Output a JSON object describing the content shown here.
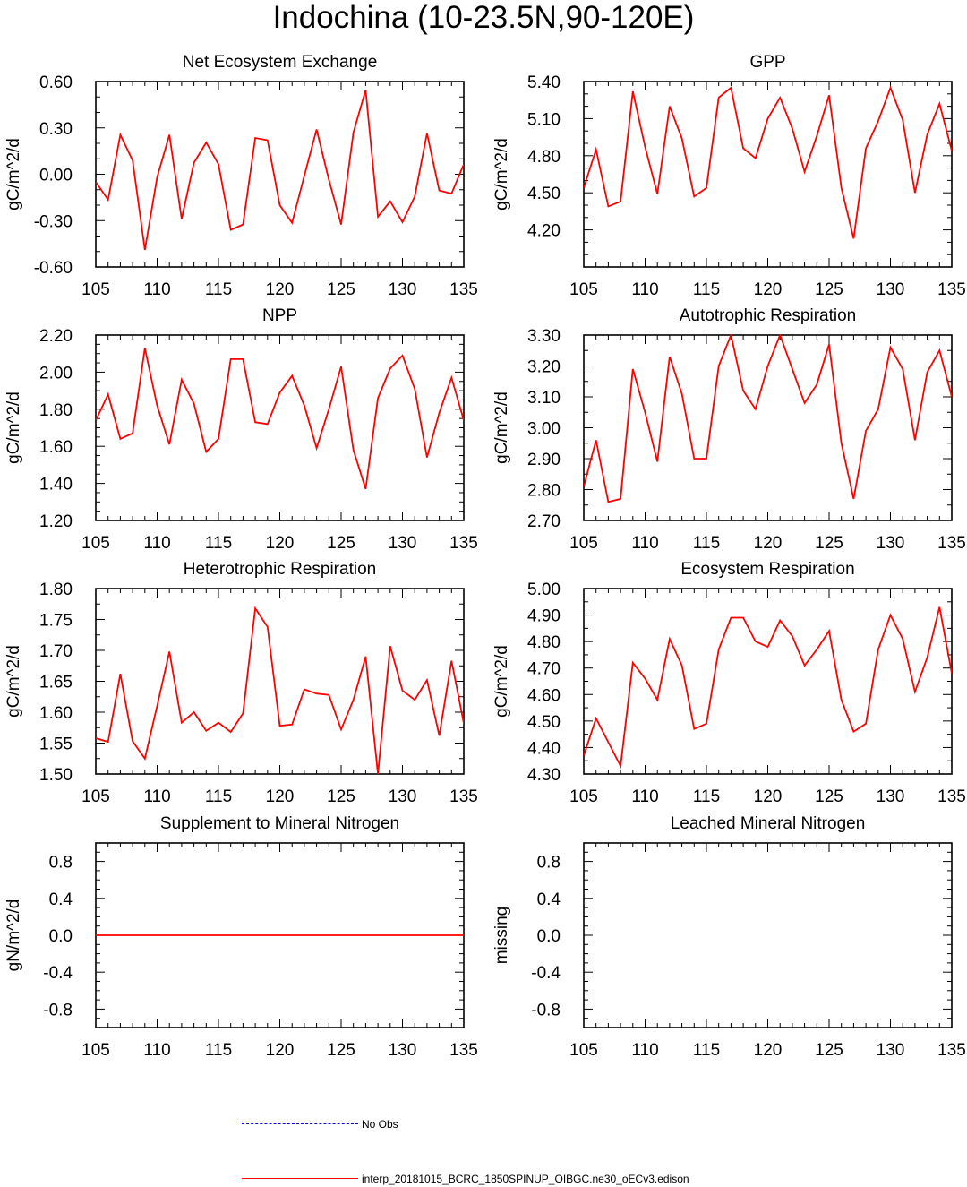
{
  "title": "Indochina (10-23.5N,90-120E)",
  "colors": {
    "model": "#ff0000",
    "obs": "#0000ff",
    "axis": "#000000"
  },
  "legend": {
    "obs_label": "No Obs",
    "model_label": "interp_20181015_BCRC_1850SPINUP_OIBGC.ne30_oECv3.edison"
  },
  "chart_data": [
    {
      "type": "line",
      "title": "Net Ecosystem Exchange",
      "ylabel": "gC/m^2/d",
      "xlim": [
        105,
        135
      ],
      "ylim": [
        -0.6,
        0.6
      ],
      "xticks": [
        105,
        110,
        115,
        120,
        125,
        130,
        135
      ],
      "yticks": [
        "-0.60",
        "-0.30",
        "0.00",
        "0.30",
        "0.60"
      ],
      "yminor": [
        -0.5,
        -0.4,
        -0.2,
        -0.1,
        0.1,
        0.2,
        0.4,
        0.5
      ],
      "series": [
        {
          "x": [
            105,
            106,
            107,
            108,
            109,
            110,
            111,
            112,
            113,
            114,
            115,
            116,
            117,
            118,
            119,
            120,
            121,
            122,
            123,
            124,
            125,
            126,
            127,
            128,
            129,
            130,
            131,
            132,
            133,
            134,
            135
          ],
          "y": [
            -0.05,
            -0.165,
            0.255,
            0.09,
            -0.49,
            -0.02,
            0.255,
            -0.29,
            0.075,
            0.205,
            0.065,
            -0.36,
            -0.325,
            0.235,
            0.22,
            -0.2,
            -0.315,
            -0.01,
            0.29,
            -0.035,
            -0.325,
            0.27,
            0.545,
            -0.275,
            -0.175,
            -0.31,
            -0.145,
            0.265,
            -0.105,
            -0.125,
            0.065
          ]
        }
      ]
    },
    {
      "type": "line",
      "title": "GPP",
      "ylabel": "gC/m^2/d",
      "xlim": [
        105,
        135
      ],
      "ylim": [
        3.9,
        5.4
      ],
      "xticks": [
        105,
        110,
        115,
        120,
        125,
        130,
        135
      ],
      "yticks": [
        "4.20",
        "4.50",
        "4.80",
        "5.10",
        "5.40"
      ],
      "yminor": [
        4.0,
        4.1,
        4.3,
        4.4,
        4.6,
        4.7,
        4.9,
        5.0,
        5.2,
        5.3
      ],
      "series": [
        {
          "x": [
            105,
            106,
            107,
            108,
            109,
            110,
            111,
            112,
            113,
            114,
            115,
            116,
            117,
            118,
            119,
            120,
            121,
            122,
            123,
            124,
            125,
            126,
            127,
            128,
            129,
            130,
            131,
            132,
            133,
            134,
            135
          ],
          "y": [
            4.54,
            4.85,
            4.39,
            4.43,
            5.32,
            4.87,
            4.49,
            5.2,
            4.94,
            4.47,
            4.54,
            5.27,
            5.35,
            4.86,
            4.78,
            5.1,
            5.27,
            5.02,
            4.67,
            4.96,
            5.29,
            4.54,
            4.13,
            4.86,
            5.08,
            5.35,
            5.09,
            4.5,
            4.97,
            5.22,
            4.84
          ]
        }
      ]
    },
    {
      "type": "line",
      "title": "NPP",
      "ylabel": "gC/m^2/d",
      "xlim": [
        105,
        135
      ],
      "ylim": [
        1.2,
        2.2
      ],
      "xticks": [
        105,
        110,
        115,
        120,
        125,
        130,
        135
      ],
      "yticks": [
        "1.20",
        "1.40",
        "1.60",
        "1.80",
        "2.00",
        "2.20"
      ],
      "yminor": [
        1.25,
        1.3,
        1.35,
        1.45,
        1.5,
        1.55,
        1.65,
        1.7,
        1.75,
        1.85,
        1.9,
        1.95,
        2.05,
        2.1,
        2.15
      ],
      "series": [
        {
          "x": [
            105,
            106,
            107,
            108,
            109,
            110,
            111,
            112,
            113,
            114,
            115,
            116,
            117,
            118,
            119,
            120,
            121,
            122,
            123,
            124,
            125,
            126,
            127,
            128,
            129,
            130,
            131,
            132,
            133,
            134,
            135
          ],
          "y": [
            1.74,
            1.88,
            1.64,
            1.67,
            2.13,
            1.82,
            1.61,
            1.96,
            1.83,
            1.57,
            1.64,
            2.07,
            2.07,
            1.73,
            1.72,
            1.89,
            1.98,
            1.82,
            1.59,
            1.8,
            2.03,
            1.58,
            1.37,
            1.86,
            2.02,
            2.09,
            1.91,
            1.54,
            1.78,
            1.97,
            1.74
          ]
        }
      ]
    },
    {
      "type": "line",
      "title": "Autotrophic Respiration",
      "ylabel": "gC/m^2/d",
      "xlim": [
        105,
        135
      ],
      "ylim": [
        2.7,
        3.3
      ],
      "xticks": [
        105,
        110,
        115,
        120,
        125,
        130,
        135
      ],
      "yticks": [
        "2.70",
        "2.80",
        "2.90",
        "3.00",
        "3.10",
        "3.20",
        "3.30"
      ],
      "yminor": [
        2.75,
        2.85,
        2.95,
        3.05,
        3.15,
        3.25
      ],
      "series": [
        {
          "x": [
            105,
            106,
            107,
            108,
            109,
            110,
            111,
            112,
            113,
            114,
            115,
            116,
            117,
            118,
            119,
            120,
            121,
            122,
            123,
            124,
            125,
            126,
            127,
            128,
            129,
            130,
            131,
            132,
            133,
            134,
            135
          ],
          "y": [
            2.81,
            2.96,
            2.76,
            2.77,
            3.19,
            3.05,
            2.89,
            3.23,
            3.11,
            2.9,
            2.9,
            3.2,
            3.3,
            3.12,
            3.06,
            3.2,
            3.3,
            3.19,
            3.08,
            3.14,
            3.27,
            2.95,
            2.77,
            2.99,
            3.06,
            3.26,
            3.19,
            2.96,
            3.18,
            3.25,
            3.1
          ]
        }
      ]
    },
    {
      "type": "line",
      "title": "Heterotrophic Respiration",
      "ylabel": "gC/m^2/d",
      "xlim": [
        105,
        135
      ],
      "ylim": [
        1.5,
        1.8
      ],
      "xticks": [
        105,
        110,
        115,
        120,
        125,
        130,
        135
      ],
      "yticks": [
        "1.50",
        "1.55",
        "1.60",
        "1.65",
        "1.70",
        "1.75",
        "1.80"
      ],
      "yminor": [
        1.525,
        1.575,
        1.625,
        1.675,
        1.725,
        1.775
      ],
      "series": [
        {
          "x": [
            105,
            106,
            107,
            108,
            109,
            110,
            111,
            112,
            113,
            114,
            115,
            116,
            117,
            118,
            119,
            120,
            121,
            122,
            123,
            124,
            125,
            126,
            127,
            128,
            129,
            130,
            131,
            132,
            133,
            134,
            135
          ],
          "y": [
            1.558,
            1.552,
            1.662,
            1.553,
            1.525,
            1.61,
            1.698,
            1.583,
            1.6,
            1.57,
            1.583,
            1.568,
            1.598,
            1.768,
            1.738,
            1.578,
            1.58,
            1.637,
            1.63,
            1.628,
            1.572,
            1.62,
            1.69,
            1.5,
            1.707,
            1.635,
            1.62,
            1.652,
            1.562,
            1.683,
            1.582
          ]
        }
      ]
    },
    {
      "type": "line",
      "title": "Ecosystem Respiration",
      "ylabel": "gC/m^2/d",
      "xlim": [
        105,
        135
      ],
      "ylim": [
        4.3,
        5.0
      ],
      "xticks": [
        105,
        110,
        115,
        120,
        125,
        130,
        135
      ],
      "yticks": [
        "4.30",
        "4.40",
        "4.50",
        "4.60",
        "4.70",
        "4.80",
        "4.90",
        "5.00"
      ],
      "yminor": [
        4.35,
        4.45,
        4.55,
        4.65,
        4.75,
        4.85,
        4.95
      ],
      "series": [
        {
          "x": [
            105,
            106,
            107,
            108,
            109,
            110,
            111,
            112,
            113,
            114,
            115,
            116,
            117,
            118,
            119,
            120,
            121,
            122,
            123,
            124,
            125,
            126,
            127,
            128,
            129,
            130,
            131,
            132,
            133,
            134,
            135
          ],
          "y": [
            4.37,
            4.51,
            4.42,
            4.33,
            4.72,
            4.66,
            4.58,
            4.81,
            4.71,
            4.47,
            4.49,
            4.77,
            4.89,
            4.89,
            4.8,
            4.78,
            4.88,
            4.82,
            4.71,
            4.77,
            4.84,
            4.58,
            4.46,
            4.49,
            4.77,
            4.9,
            4.81,
            4.61,
            4.74,
            4.93,
            4.68
          ]
        }
      ]
    },
    {
      "type": "line",
      "title": "Supplement to Mineral Nitrogen",
      "ylabel": "gN/m^2/d",
      "xlim": [
        105,
        135
      ],
      "ylim": [
        -1.0,
        1.0
      ],
      "xticks": [
        105,
        110,
        115,
        120,
        125,
        130,
        135
      ],
      "yticks": [
        "-0.8",
        "-0.4",
        "0.0",
        "0.4",
        "0.8"
      ],
      "yminor": [
        -0.9,
        -0.7,
        -0.6,
        -0.5,
        -0.3,
        -0.2,
        -0.1,
        0.1,
        0.2,
        0.3,
        0.5,
        0.6,
        0.7,
        0.9
      ],
      "series": [
        {
          "x": [
            105,
            135
          ],
          "y": [
            0,
            0
          ]
        }
      ]
    },
    {
      "type": "line",
      "title": "Leached Mineral Nitrogen",
      "ylabel": "missing",
      "xlim": [
        105,
        135
      ],
      "ylim": [
        -1.0,
        1.0
      ],
      "xticks": [
        105,
        110,
        115,
        120,
        125,
        130,
        135
      ],
      "yticks": [
        "-0.8",
        "-0.4",
        "0.0",
        "0.4",
        "0.8"
      ],
      "yminor": [
        -0.9,
        -0.7,
        -0.6,
        -0.5,
        -0.3,
        -0.2,
        -0.1,
        0.1,
        0.2,
        0.3,
        0.5,
        0.6,
        0.7,
        0.9
      ],
      "series": []
    }
  ]
}
